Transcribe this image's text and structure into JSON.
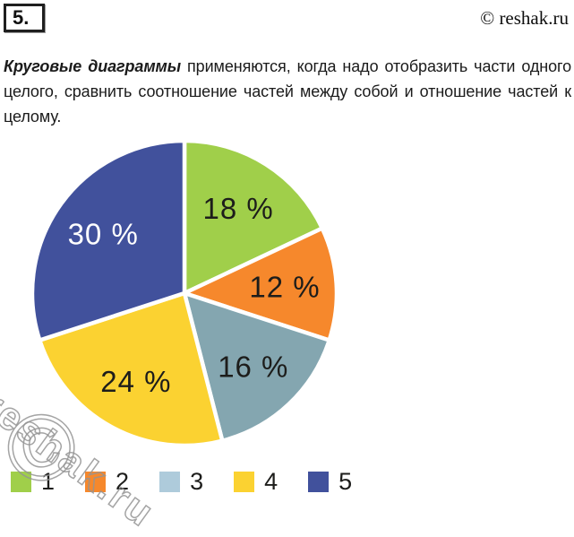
{
  "page": {
    "number": "5.",
    "copyright": "© reshak.ru",
    "paragraph_bold": "Круговые диаграммы",
    "paragraph_rest": " применяются, когда надо отобразить части одного целого, сравнить соотношение частей между собой и отношение частей к целому."
  },
  "watermark": {
    "symbol": "©",
    "text": "reshak.ru"
  },
  "chart_data": {
    "type": "pie",
    "title": "",
    "start_angle_deg": 0,
    "direction": "clockwise",
    "slices": [
      {
        "name": "1",
        "value": 18,
        "label": "18 %",
        "color": "#a0cf4a",
        "label_color": "#1d1d1b"
      },
      {
        "name": "2",
        "value": 12,
        "label": "12 %",
        "color": "#f6882c",
        "label_color": "#1d1d1b"
      },
      {
        "name": "3",
        "value": 16,
        "label": "16 %",
        "color": "#84a6b0",
        "label_color": "#1d1d1b"
      },
      {
        "name": "4",
        "value": 24,
        "label": "24 %",
        "color": "#fbd231",
        "label_color": "#1d1d1b"
      },
      {
        "name": "5",
        "value": 30,
        "label": "30 %",
        "color": "#41519c",
        "label_color": "#ffffff"
      }
    ],
    "legend": [
      {
        "label": "1",
        "color": "#a0cf4a"
      },
      {
        "label": "2",
        "color": "#f6882c"
      },
      {
        "label": "3",
        "color": "#aecbdb"
      },
      {
        "label": "4",
        "color": "#fbd231"
      },
      {
        "label": "5",
        "color": "#41519c"
      }
    ],
    "legend_position": "bottom"
  }
}
